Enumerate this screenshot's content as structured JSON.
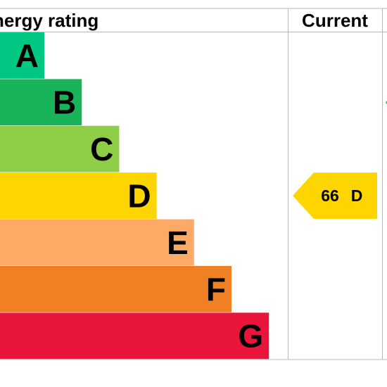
{
  "header": {
    "rating_title": "nergy rating",
    "current_title": "Current"
  },
  "chart_data": {
    "type": "bar",
    "categories": [
      "A",
      "B",
      "C",
      "D",
      "E",
      "F",
      "G"
    ],
    "band_colors": [
      "#00c781",
      "#19b459",
      "#8dce46",
      "#ffd500",
      "#fcaa65",
      "#ef8023",
      "#e9153b"
    ],
    "current": {
      "value": 66,
      "band": "D",
      "label_value": "66",
      "label_band": "D",
      "color": "#ffd500"
    },
    "potential_marker_color": "#19b459"
  }
}
